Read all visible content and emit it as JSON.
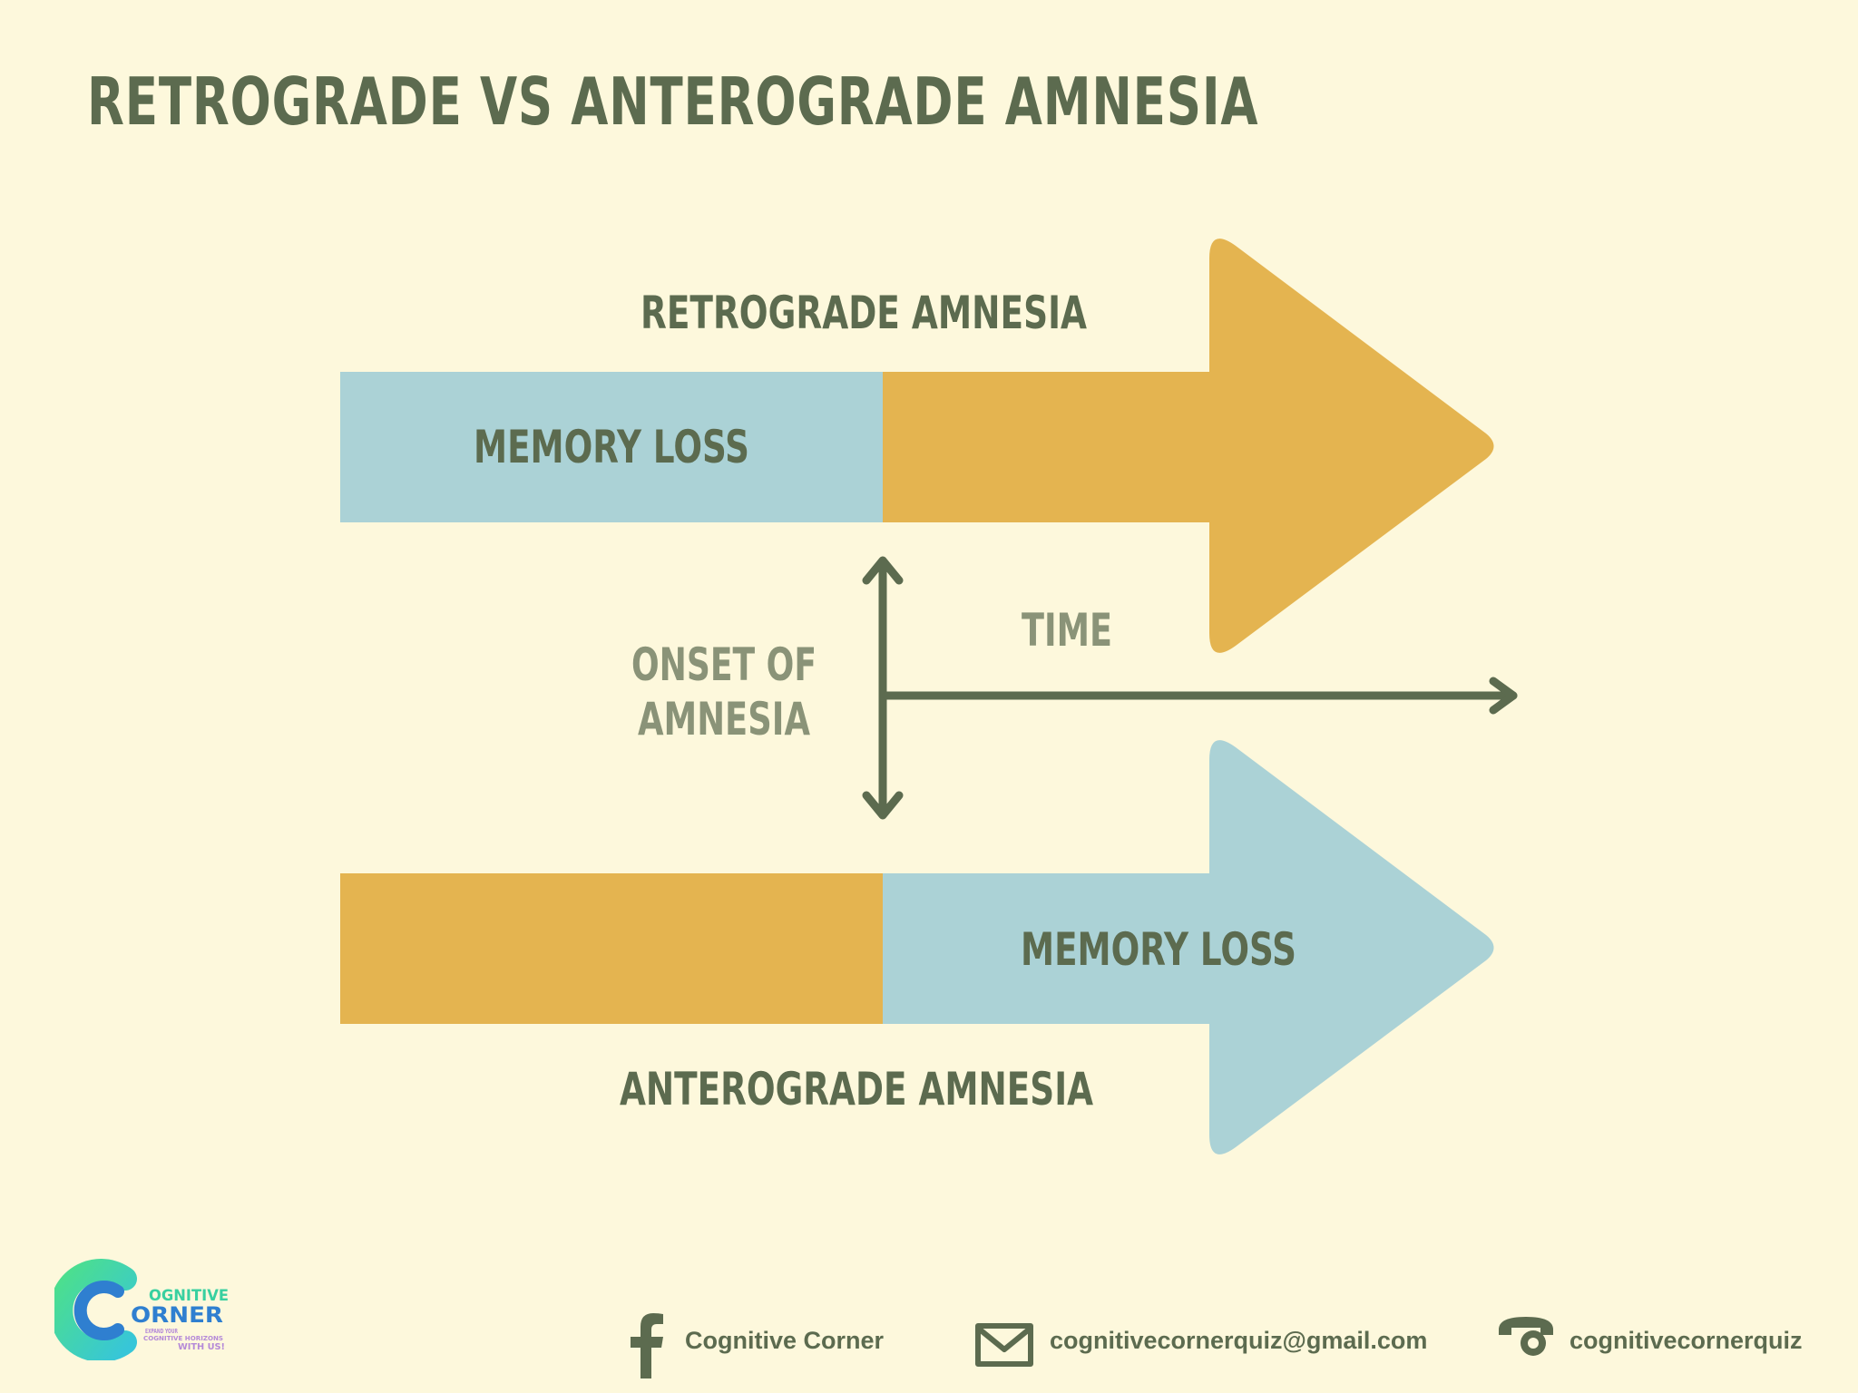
{
  "title": "RETROGRADE VS ANTEROGRADE AMNESIA",
  "diagram": {
    "retrograde": {
      "label": "RETROGRADE AMNESIA",
      "segment_text": "MEMORY LOSS"
    },
    "anterograde": {
      "label": "ANTEROGRADE AMNESIA",
      "segment_text": "MEMORY LOSS"
    },
    "onset_label_line1": "ONSET OF",
    "onset_label_line2": "AMNESIA",
    "time_label": "TIME"
  },
  "colors": {
    "background": "#fdf8dc",
    "gold": "#e4b450",
    "light_blue": "#abd2d6",
    "olive": "#5c6b4f",
    "muted_olive": "#8a9378"
  },
  "logo": {
    "line1": "OGNITIVE",
    "line2": "ORNER",
    "tagline1": "EXPAND YOUR",
    "tagline2": "COGNITIVE HORIZONS",
    "tagline3": "WITH US!"
  },
  "footer": {
    "facebook": {
      "icon": "facebook-icon",
      "text": "Cognitive Corner"
    },
    "email": {
      "icon": "mail-icon",
      "text": "cognitivecornerquiz@gmail.com"
    },
    "phone": {
      "icon": "phone-icon",
      "text": "cognitivecornerquiz"
    }
  }
}
